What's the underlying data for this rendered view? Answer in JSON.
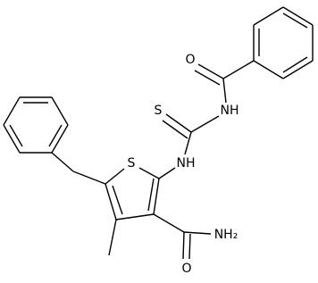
{
  "atoms": [
    {
      "label": "O"
    },
    {
      "label": "NH"
    },
    {
      "label": "S"
    },
    {
      "label": "NH"
    },
    {
      "label": "S"
    },
    {
      "label": "NH₂"
    },
    {
      "label": "O"
    }
  ]
}
